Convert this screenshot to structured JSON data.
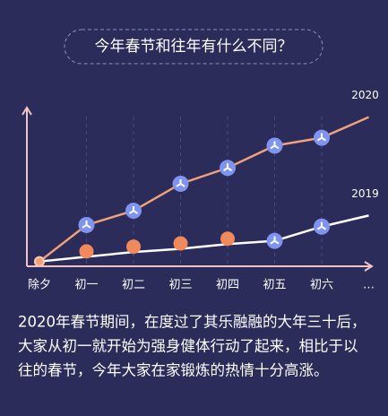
{
  "chart_data": {
    "type": "line",
    "title": "今年春节和往年有什么不同？",
    "categories": [
      "除夕",
      "初一",
      "初二",
      "初三",
      "初四",
      "初五",
      "初六",
      "…"
    ],
    "series": [
      {
        "name": "2020",
        "color": "#f0a07a",
        "values": [
          3,
          26,
          35,
          52,
          62,
          76,
          81,
          94
        ]
      },
      {
        "name": "2019",
        "color": "#ffffff",
        "values": [
          3,
          6,
          9,
          11,
          14,
          16,
          25,
          32
        ]
      }
    ],
    "ylim": [
      0,
      100
    ],
    "grid": true
  },
  "caption": [
    "2020年春节期间，在度过了其乐融融的大年三十后，",
    "大家从初一就开始为强身健体行动了起来，相比于以",
    "往的春节，今年大家在家锻炼的热情十分高涨。"
  ]
}
